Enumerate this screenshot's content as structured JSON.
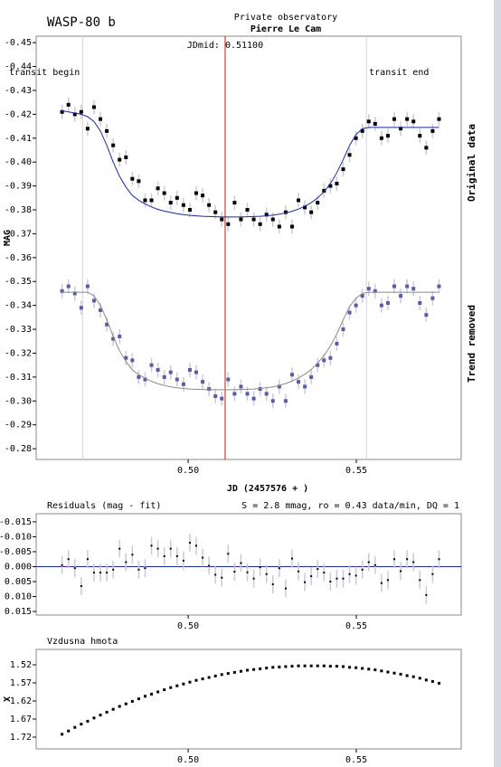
{
  "chart_data": [
    {
      "type": "scatter",
      "title": "WASP-80 b",
      "subtitle": [
        "Private observatory",
        "Pierre Le Cam"
      ],
      "x_label": "JD (2457576 + )",
      "y_label": "MAG",
      "xlim": [
        0.4548,
        0.5812
      ],
      "ylim": [
        -0.2755,
        -0.4527
      ],
      "xticks": [
        {
          "value": 0.5,
          "label": "0.50"
        },
        0.55
      ],
      "yticks": [
        -0.45,
        -0.44,
        -0.43,
        -0.42,
        -0.41,
        {
          "value": -0.4,
          "label": "-0.40"
        },
        -0.39,
        -0.38,
        -0.37,
        -0.36,
        -0.35,
        -0.34,
        -0.33,
        -0.32,
        -0.31,
        {
          "value": -0.3,
          "label": "-0.30"
        },
        -0.29,
        -0.28
      ],
      "markers": [
        {
          "label": "transit begin",
          "x": 0.4686,
          "color": "#d4d4d4"
        },
        {
          "label": "transit end",
          "x": 0.553,
          "color": "#d4d4d4"
        },
        {
          "label": "JDmid: 0.51100",
          "x": 0.511,
          "color": "#cc1111"
        }
      ],
      "x": [
        0.4625,
        0.4644,
        0.4663,
        0.4682,
        0.4701,
        0.472,
        0.4739,
        0.4758,
        0.4777,
        0.4796,
        0.4815,
        0.4834,
        0.4853,
        0.4872,
        0.4891,
        0.491,
        0.4929,
        0.4948,
        0.4967,
        0.4986,
        0.5005,
        0.5024,
        0.5043,
        0.5062,
        0.5081,
        0.51,
        0.5119,
        0.5138,
        0.5157,
        0.5176,
        0.5195,
        0.5214,
        0.5233,
        0.5252,
        0.5271,
        0.529,
        0.5309,
        0.5328,
        0.5347,
        0.5366,
        0.5385,
        0.5404,
        0.5423,
        0.5442,
        0.5461,
        0.548,
        0.5499,
        0.5518,
        0.5537,
        0.5556,
        0.5575,
        0.5594,
        0.5613,
        0.5632,
        0.5651,
        0.567,
        0.5689,
        0.5708,
        0.5727,
        0.5746
      ],
      "series": [
        {
          "name": "Original data",
          "color": "#000000",
          "fit_color": "#1c2a9c",
          "error": 0.003,
          "values": [
            -0.421,
            -0.424,
            -0.42,
            -0.421,
            -0.414,
            -0.423,
            -0.418,
            -0.413,
            -0.407,
            -0.401,
            -0.402,
            -0.393,
            -0.392,
            -0.384,
            -0.384,
            -0.389,
            -0.387,
            -0.383,
            -0.385,
            -0.382,
            -0.38,
            -0.387,
            -0.386,
            -0.382,
            -0.379,
            -0.376,
            -0.374,
            -0.383,
            -0.376,
            -0.38,
            -0.376,
            -0.374,
            -0.378,
            -0.376,
            -0.373,
            -0.379,
            -0.373,
            -0.384,
            -0.381,
            -0.379,
            -0.383,
            -0.388,
            -0.39,
            -0.391,
            -0.397,
            -0.403,
            -0.41,
            -0.413,
            -0.417,
            -0.416,
            -0.41,
            -0.411,
            -0.418,
            -0.414,
            -0.418,
            -0.417,
            -0.411,
            -0.406,
            -0.413,
            -0.418
          ],
          "fit": [
            -0.4215,
            -0.421,
            -0.4205,
            -0.42,
            -0.419,
            -0.417,
            -0.413,
            -0.407,
            -0.4,
            -0.394,
            -0.3895,
            -0.386,
            -0.384,
            -0.3825,
            -0.3812,
            -0.3802,
            -0.3795,
            -0.3789,
            -0.3784,
            -0.378,
            -0.3777,
            -0.3775,
            -0.3773,
            -0.3772,
            -0.3771,
            -0.377,
            -0.377,
            -0.377,
            -0.377,
            -0.3771,
            -0.3772,
            -0.3773,
            -0.3775,
            -0.3778,
            -0.3782,
            -0.3787,
            -0.3794,
            -0.3803,
            -0.3815,
            -0.383,
            -0.385,
            -0.3876,
            -0.391,
            -0.3955,
            -0.401,
            -0.407,
            -0.4115,
            -0.414,
            -0.4145,
            -0.4145,
            -0.4145,
            -0.4145,
            -0.4145,
            -0.4145,
            -0.4145,
            -0.4145,
            -0.4145,
            -0.4145,
            -0.4145,
            -0.4145
          ]
        },
        {
          "name": "Trend removed",
          "color": "#5b5b9f",
          "fit_color": "#8a8a8a",
          "error": 0.003,
          "values": [
            -0.346,
            -0.348,
            -0.345,
            -0.339,
            -0.348,
            -0.342,
            -0.338,
            -0.332,
            -0.326,
            -0.327,
            -0.318,
            -0.317,
            -0.31,
            -0.309,
            -0.315,
            -0.313,
            -0.31,
            -0.312,
            -0.309,
            -0.307,
            -0.313,
            -0.312,
            -0.308,
            -0.305,
            -0.302,
            -0.301,
            -0.309,
            -0.303,
            -0.306,
            -0.303,
            -0.301,
            -0.305,
            -0.303,
            -0.3,
            -0.306,
            -0.3,
            -0.311,
            -0.308,
            -0.306,
            -0.31,
            -0.315,
            -0.317,
            -0.318,
            -0.324,
            -0.33,
            -0.337,
            -0.34,
            -0.344,
            -0.347,
            -0.346,
            -0.34,
            -0.341,
            -0.348,
            -0.344,
            -0.348,
            -0.347,
            -0.341,
            -0.336,
            -0.343,
            -0.348
          ],
          "fit": [
            -0.3455,
            -0.3455,
            -0.3455,
            -0.3455,
            -0.3455,
            -0.344,
            -0.34,
            -0.334,
            -0.327,
            -0.321,
            -0.3165,
            -0.313,
            -0.311,
            -0.3095,
            -0.3082,
            -0.3072,
            -0.3065,
            -0.3059,
            -0.3055,
            -0.3052,
            -0.305,
            -0.3049,
            -0.3048,
            -0.3047,
            -0.3047,
            -0.3047,
            -0.3047,
            -0.3047,
            -0.3048,
            -0.3049,
            -0.305,
            -0.3052,
            -0.3055,
            -0.3059,
            -0.3065,
            -0.3073,
            -0.3083,
            -0.3096,
            -0.3112,
            -0.3132,
            -0.3158,
            -0.319,
            -0.323,
            -0.328,
            -0.334,
            -0.3395,
            -0.343,
            -0.345,
            -0.3455,
            -0.3455,
            -0.3455,
            -0.3455,
            -0.3455,
            -0.3455,
            -0.3455,
            -0.3455,
            -0.3455,
            -0.3455,
            -0.3455,
            -0.3455
          ]
        }
      ]
    },
    {
      "type": "scatter",
      "title": "Residuals (mag - fit)",
      "note": "S = 2.8 mmag, ro = 0.43 data/min, DQ = 1",
      "zero_line_color": "#1c2a9c",
      "xlim": [
        0.4548,
        0.5812
      ],
      "ylim": [
        0.0162,
        -0.0177
      ],
      "xticks": [
        {
          "value": 0.5,
          "label": "0.50"
        },
        0.55
      ],
      "yticks": [
        -0.015,
        {
          "value": -0.01,
          "label": "-0.010"
        },
        -0.005,
        {
          "value": 0,
          "label": "0.000"
        },
        0.005,
        {
          "value": 0.01,
          "label": "0.010"
        },
        0.015
      ],
      "x": [
        0.4625,
        0.4644,
        0.4663,
        0.4682,
        0.4701,
        0.472,
        0.4739,
        0.4758,
        0.4777,
        0.4796,
        0.4815,
        0.4834,
        0.4853,
        0.4872,
        0.4891,
        0.491,
        0.4929,
        0.4948,
        0.4967,
        0.4986,
        0.5005,
        0.5024,
        0.5043,
        0.5062,
        0.5081,
        0.51,
        0.5119,
        0.5138,
        0.5157,
        0.5176,
        0.5195,
        0.5214,
        0.5233,
        0.5252,
        0.5271,
        0.529,
        0.5309,
        0.5328,
        0.5347,
        0.5366,
        0.5385,
        0.5404,
        0.5423,
        0.5442,
        0.5461,
        0.548,
        0.5499,
        0.5518,
        0.5537,
        0.5556,
        0.5575,
        0.5594,
        0.5613,
        0.5632,
        0.5651,
        0.567,
        0.5689,
        0.5708,
        0.5727,
        0.5746
      ],
      "series": [
        {
          "color": "#000000",
          "error": 0.003,
          "values": [
            -0.0005,
            -0.0025,
            0.0005,
            0.0065,
            -0.0025,
            0.002,
            0.002,
            0.002,
            0.001,
            -0.006,
            -0.0015,
            -0.004,
            0.001,
            0.0005,
            -0.007,
            -0.006,
            -0.0035,
            -0.006,
            -0.0035,
            -0.002,
            -0.008,
            -0.007,
            -0.003,
            -0.0003,
            0.0027,
            0.0037,
            -0.0043,
            0.0017,
            -0.0012,
            0.0019,
            0.004,
            0.0002,
            0.0025,
            0.0059,
            0.0005,
            0.0073,
            -0.0027,
            0.0016,
            0.0052,
            0.0032,
            0.0008,
            0.002,
            0.005,
            0.004,
            0.004,
            0.0025,
            0.003,
            0.001,
            -0.0015,
            -0.0005,
            0.0055,
            0.0045,
            -0.0025,
            0.0015,
            -0.0025,
            -0.0015,
            0.0045,
            0.0095,
            0.0025,
            -0.0025
          ]
        }
      ]
    },
    {
      "type": "scatter",
      "title": "Vzdusna hmota",
      "y_label": "X",
      "xlim": [
        0.4548,
        0.5812
      ],
      "ylim": [
        1.7525,
        1.4775
      ],
      "xticks": [
        {
          "value": 0.5,
          "label": "0.50"
        },
        0.55
      ],
      "yticks": [
        1.52,
        1.57,
        1.62,
        1.67,
        1.72
      ],
      "x": [
        0.4625,
        0.4644,
        0.4663,
        0.4682,
        0.4701,
        0.472,
        0.4739,
        0.4758,
        0.4777,
        0.4796,
        0.4815,
        0.4834,
        0.4853,
        0.4872,
        0.4891,
        0.491,
        0.4929,
        0.4948,
        0.4967,
        0.4986,
        0.5005,
        0.5024,
        0.5043,
        0.5062,
        0.5081,
        0.51,
        0.5119,
        0.5138,
        0.5157,
        0.5176,
        0.5195,
        0.5214,
        0.5233,
        0.5252,
        0.5271,
        0.529,
        0.5309,
        0.5328,
        0.5347,
        0.5366,
        0.5385,
        0.5404,
        0.5423,
        0.5442,
        0.5461,
        0.548,
        0.5499,
        0.5518,
        0.5537,
        0.5556,
        0.5575,
        0.5594,
        0.5613,
        0.5632,
        0.5651,
        0.567,
        0.5689,
        0.5708,
        0.5727,
        0.5746
      ],
      "series": [
        {
          "color": "#000000",
          "values": [
            1.712,
            1.703,
            1.693,
            1.684,
            1.676,
            1.667,
            1.659,
            1.651,
            1.643,
            1.635,
            1.628,
            1.621,
            1.614,
            1.607,
            1.601,
            1.595,
            1.589,
            1.583,
            1.578,
            1.573,
            1.568,
            1.563,
            1.559,
            1.555,
            1.551,
            1.547,
            1.544,
            1.541,
            1.538,
            1.535,
            1.533,
            1.531,
            1.529,
            1.527,
            1.526,
            1.525,
            1.524,
            1.523,
            1.523,
            1.523,
            1.523,
            1.523,
            1.524,
            1.524,
            1.525,
            1.527,
            1.528,
            1.53,
            1.532,
            1.534,
            1.537,
            1.54,
            1.543,
            1.546,
            1.55,
            1.553,
            1.557,
            1.562,
            1.566,
            1.571
          ]
        }
      ]
    }
  ]
}
